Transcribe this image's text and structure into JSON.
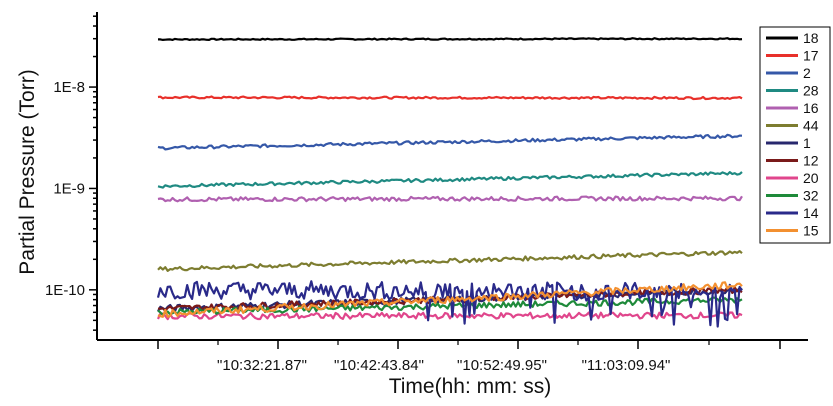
{
  "chart_data": {
    "type": "line",
    "xlabel": "Time(hh: mm: ss)",
    "ylabel": "Partial Pressure (Torr)",
    "y_scale": "log",
    "ylim": [
      3.2e-11,
      5.5e-08
    ],
    "x_tick_labels": [
      "\"10:32:21.87\"",
      "\"10:42:43.84\"",
      "\"10:52:49.95\"",
      "\"11:03:09.94\""
    ],
    "y_tick_labels": [
      {
        "label": "1E-10",
        "value": 1e-10
      },
      {
        "label": "1E-9",
        "value": 1e-09
      },
      {
        "label": "1E-8",
        "value": 1e-08
      }
    ],
    "legend_position": "right",
    "grid": false,
    "series": [
      {
        "name": "18",
        "color": "#000000",
        "start": 2.95e-08,
        "end": 3e-08,
        "noise": 0.006
      },
      {
        "name": "17",
        "color": "#e8302a",
        "start": 7.9e-09,
        "end": 7.8e-09,
        "noise": 0.01
      },
      {
        "name": "2",
        "color": "#3558a8",
        "start": 2.5e-09,
        "end": 3.3e-09,
        "noise": 0.015
      },
      {
        "name": "28",
        "color": "#1f8a82",
        "start": 1.05e-09,
        "end": 1.42e-09,
        "noise": 0.015
      },
      {
        "name": "16",
        "color": "#b060b0",
        "start": 7.8e-10,
        "end": 8e-10,
        "noise": 0.02
      },
      {
        "name": "44",
        "color": "#7d7d30",
        "start": 1.6e-10,
        "end": 2.35e-10,
        "noise": 0.02
      },
      {
        "name": "1",
        "color": "#28286e",
        "start": 6.5e-11,
        "end": 1e-10,
        "noise": 0.035
      },
      {
        "name": "12",
        "color": "#7a1a1a",
        "start": 6.5e-11,
        "end": 1e-10,
        "noise": 0.03
      },
      {
        "name": "20",
        "color": "#e0468c",
        "start": 5.5e-11,
        "end": 5.6e-11,
        "noise": 0.03
      },
      {
        "name": "32",
        "color": "#1e8a3a",
        "start": 6e-11,
        "end": 8e-11,
        "noise": 0.03
      },
      {
        "name": "14",
        "color": "#2a2a8a",
        "start": 1e-10,
        "end": 9.5e-11,
        "noise": 0.09,
        "spiky": true
      },
      {
        "name": "15",
        "color": "#f39030",
        "start": 5.8e-11,
        "end": 1.12e-10,
        "noise": 0.035
      }
    ]
  }
}
